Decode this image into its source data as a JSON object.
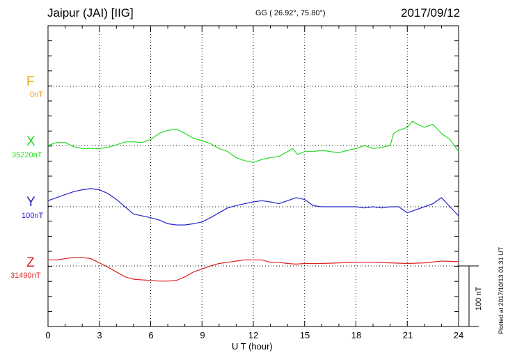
{
  "header": {
    "station": "Jaipur (JAI)  [IIG]",
    "coords": "GG ( 26.92°,  75.80°)",
    "date": "2017/09/12"
  },
  "components": [
    {
      "name": "F",
      "baseline": "0nT",
      "color": "#f0a000"
    },
    {
      "name": "X",
      "baseline": "35220nT",
      "color": "#22dd22"
    },
    {
      "name": "Y",
      "baseline": "100nT",
      "color": "#2222cc"
    },
    {
      "name": "Z",
      "baseline": "31490nT",
      "color": "#dd2222"
    }
  ],
  "scale_label": "100 nT",
  "plotted_note": "Plotted at 2017/10/13 01:31  UT",
  "chart_data": {
    "type": "line",
    "xlabel": "U T (hour)",
    "xlim": [
      0,
      24
    ],
    "xticks": [
      "0",
      "3",
      "6",
      "9",
      "12",
      "15",
      "18",
      "21",
      "24"
    ],
    "scale_nT_per_division": 100,
    "grid": true,
    "series": [
      {
        "name": "F",
        "unit": "nT offset",
        "x": [],
        "values": []
      },
      {
        "name": "X",
        "unit": "nT offset",
        "x": [
          0,
          0.5,
          1,
          1.5,
          2,
          2.5,
          3,
          3.5,
          4,
          4.5,
          5,
          5.5,
          6,
          6.5,
          7,
          7.5,
          8,
          8.5,
          9,
          9.5,
          10,
          10.5,
          11,
          11.5,
          12,
          12.5,
          13,
          13.5,
          14,
          14.3,
          14.6,
          15,
          15.5,
          16,
          16.5,
          17,
          17.5,
          18,
          18.5,
          19,
          19.5,
          20,
          20.2,
          20.5,
          21,
          21.3,
          21.6,
          22,
          22.5,
          23,
          23.5,
          24
        ],
        "values": [
          0,
          5,
          5,
          -2,
          -5,
          -5,
          -5,
          -3,
          1,
          6,
          6,
          5,
          10,
          20,
          25,
          27,
          20,
          12,
          8,
          3,
          -5,
          -10,
          -20,
          -25,
          -28,
          -23,
          -20,
          -18,
          -10,
          -5,
          -15,
          -10,
          -10,
          -8,
          -10,
          -12,
          -8,
          -5,
          0,
          -5,
          -3,
          0,
          20,
          25,
          30,
          40,
          35,
          30,
          35,
          20,
          10,
          -10
        ]
      },
      {
        "name": "Y",
        "unit": "nT offset",
        "x": [
          0,
          0.5,
          1,
          1.5,
          2,
          2.5,
          3,
          3.5,
          4,
          4.5,
          5,
          5.5,
          6,
          6.5,
          7,
          7.5,
          8,
          8.5,
          9,
          9.5,
          10,
          10.5,
          11,
          11.5,
          12,
          12.5,
          13,
          13.5,
          14,
          14.5,
          15,
          15.5,
          16,
          16.5,
          17,
          17.5,
          18,
          18.5,
          19,
          19.5,
          20,
          20.5,
          21,
          21.5,
          22,
          22.5,
          23,
          23.5,
          24
        ],
        "values": [
          10,
          15,
          20,
          25,
          28,
          30,
          28,
          22,
          12,
          0,
          -12,
          -15,
          -18,
          -22,
          -28,
          -30,
          -30,
          -28,
          -25,
          -18,
          -10,
          -2,
          2,
          5,
          8,
          10,
          8,
          5,
          10,
          15,
          12,
          2,
          0,
          0,
          0,
          0,
          0,
          -2,
          0,
          -2,
          0,
          0,
          -10,
          -5,
          0,
          5,
          15,
          0,
          -15
        ]
      },
      {
        "name": "Z",
        "unit": "nT offset",
        "x": [
          0,
          0.5,
          1,
          1.5,
          2,
          2.5,
          3,
          3.5,
          4,
          4.5,
          5,
          5.5,
          6,
          6.5,
          7,
          7.5,
          8,
          8.5,
          9,
          9.5,
          10,
          10.5,
          11,
          11.5,
          12,
          12.5,
          13,
          13.5,
          14,
          14.5,
          15,
          16,
          17,
          18,
          19,
          20,
          21,
          22,
          23,
          24
        ],
        "values": [
          10,
          10,
          12,
          14,
          14,
          12,
          5,
          -2,
          -10,
          -18,
          -22,
          -23,
          -24,
          -25,
          -25,
          -24,
          -18,
          -10,
          -5,
          0,
          4,
          6,
          8,
          10,
          10,
          10,
          6,
          6,
          4,
          3,
          4,
          4,
          5,
          6,
          6,
          5,
          4,
          5,
          8,
          7
        ]
      }
    ]
  }
}
